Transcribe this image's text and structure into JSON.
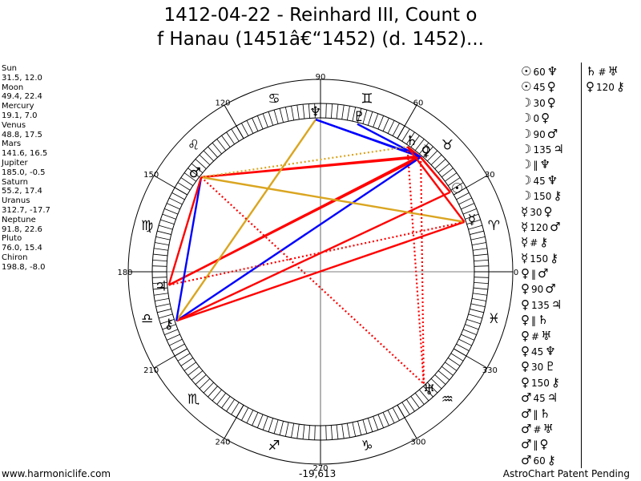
{
  "title": {
    "line1": "1412-04-22 - Reinhard III, Count o",
    "line2": "f Hanau (1451â€“1452) (d. 1452)..."
  },
  "planets": [
    {
      "name": "Sun",
      "pos": "31.5, 12.0",
      "glyph": "☉"
    },
    {
      "name": "Moon",
      "pos": "49.4, 22.4",
      "glyph": "☽"
    },
    {
      "name": "Mercury",
      "pos": "19.1, 7.0",
      "glyph": "☿"
    },
    {
      "name": "Venus",
      "pos": "48.8, 17.5",
      "glyph": "♀"
    },
    {
      "name": "Mars",
      "pos": "141.6, 16.5",
      "glyph": "♂"
    },
    {
      "name": "Jupiter",
      "pos": "185.0, -0.5",
      "glyph": "♃"
    },
    {
      "name": "Saturn",
      "pos": "55.2, 17.4",
      "glyph": "♄"
    },
    {
      "name": "Uranus",
      "pos": "312.7, -17.7",
      "glyph": "♅"
    },
    {
      "name": "Neptune",
      "pos": "91.8, 22.6",
      "glyph": "♆"
    },
    {
      "name": "Pluto",
      "pos": "76.0, 15.4",
      "glyph": "♇"
    },
    {
      "name": "Chiron",
      "pos": "198.8, -8.0",
      "glyph": "⚷"
    }
  ],
  "aspects_col1": [
    {
      "p1": "☉",
      "angle": "60",
      "p2": "♆"
    },
    {
      "p1": "☉",
      "angle": "45",
      "p2": "♀"
    },
    {
      "p1": "☽",
      "angle": "30",
      "p2": "♀"
    },
    {
      "p1": "☽",
      "angle": "0",
      "p2": "♀"
    },
    {
      "p1": "☽",
      "angle": "90",
      "p2": "♂"
    },
    {
      "p1": "☽",
      "angle": "135",
      "p2": "♃"
    },
    {
      "p1": "☽",
      "angle": "‖",
      "p2": "♆"
    },
    {
      "p1": "☽",
      "angle": "45",
      "p2": "♆"
    },
    {
      "p1": "☽",
      "angle": "150",
      "p2": "⚷"
    },
    {
      "p1": "☿",
      "angle": "30",
      "p2": "♀"
    },
    {
      "p1": "☿",
      "angle": "120",
      "p2": "♂"
    },
    {
      "p1": "☿",
      "angle": "#",
      "p2": "⚷"
    },
    {
      "p1": "☿",
      "angle": "150",
      "p2": "⚷"
    },
    {
      "p1": "♀",
      "angle": "‖",
      "p2": "♂"
    },
    {
      "p1": "♀",
      "angle": "90",
      "p2": "♂"
    },
    {
      "p1": "♀",
      "angle": "135",
      "p2": "♃"
    },
    {
      "p1": "♀",
      "angle": "‖",
      "p2": "♄"
    },
    {
      "p1": "♀",
      "angle": "#",
      "p2": "♅"
    },
    {
      "p1": "♀",
      "angle": "45",
      "p2": "♆"
    },
    {
      "p1": "♀",
      "angle": "30",
      "p2": "♇"
    },
    {
      "p1": "♀",
      "angle": "150",
      "p2": "⚷"
    },
    {
      "p1": "♂",
      "angle": "45",
      "p2": "♃"
    },
    {
      "p1": "♂",
      "angle": "‖",
      "p2": "♄"
    },
    {
      "p1": "♂",
      "angle": "#",
      "p2": "♅"
    },
    {
      "p1": "♂",
      "angle": "‖",
      "p2": "♀"
    },
    {
      "p1": "♂",
      "angle": "60",
      "p2": "⚷"
    }
  ],
  "aspects_col2": [
    {
      "p1": "♄",
      "angle": "#",
      "p2": "♅"
    },
    {
      "p1": "♀",
      "angle": "120",
      "p2": "⚷"
    }
  ],
  "wheel": {
    "degree_labels": [
      "0",
      "30",
      "60",
      "90",
      "120",
      "150",
      "180",
      "210",
      "240",
      "270",
      "300",
      "330"
    ],
    "sign_glyphs": [
      "♈",
      "♉",
      "♊",
      "♋",
      "♌",
      "♍",
      "♎",
      "♏",
      "♐",
      "♑",
      "♒",
      "♓"
    ]
  },
  "footer": {
    "left": "www.harmoniclife.com",
    "center": "-19,613",
    "right": "AstroChart Patent Pending"
  },
  "colors": {
    "red": "#ff0000",
    "blue": "#0000ff",
    "gold": "#daa520"
  }
}
